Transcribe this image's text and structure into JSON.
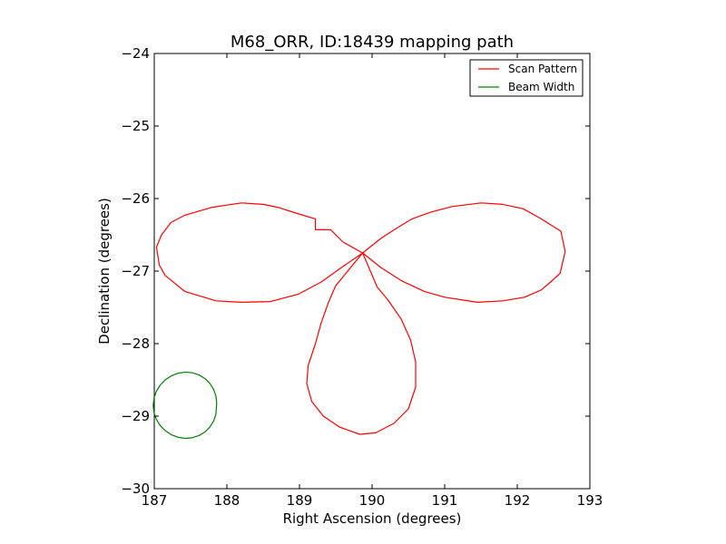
{
  "chart_data": {
    "type": "line",
    "title": "M68_ORR, ID:18439 mapping path",
    "xlabel": "Right Ascension (degrees)",
    "ylabel": "Declination (degrees)",
    "xlim": [
      187,
      193
    ],
    "ylim": [
      -30,
      -24
    ],
    "x_ticks": [
      187,
      188,
      189,
      190,
      191,
      192,
      193
    ],
    "x_tick_labels": [
      "187",
      "188",
      "189",
      "190",
      "191",
      "192",
      "193"
    ],
    "y_ticks": [
      -30,
      -29,
      -28,
      -27,
      -26,
      -25,
      -24
    ],
    "y_tick_labels": [
      "−30",
      "−29",
      "−28",
      "−27",
      "−26",
      "−25",
      "−24"
    ],
    "grid": false,
    "legend_position": "top-right",
    "series": [
      {
        "name": "Scan Pattern",
        "color": "#ff0000",
        "points": [
          [
            192.66,
            -26.73
          ],
          [
            192.6,
            -26.45
          ],
          [
            192.33,
            -26.28
          ],
          [
            192.08,
            -26.14
          ],
          [
            191.8,
            -26.08
          ],
          [
            191.5,
            -26.06
          ],
          [
            191.1,
            -26.11
          ],
          [
            190.8,
            -26.19
          ],
          [
            190.55,
            -26.28
          ],
          [
            190.32,
            -26.42
          ],
          [
            190.12,
            -26.55
          ],
          [
            189.87,
            -26.75
          ],
          [
            189.5,
            -27.2
          ],
          [
            189.4,
            -27.43
          ],
          [
            189.3,
            -27.71
          ],
          [
            189.22,
            -28.0
          ],
          [
            189.12,
            -28.3
          ],
          [
            189.1,
            -28.55
          ],
          [
            189.17,
            -28.8
          ],
          [
            189.33,
            -29.0
          ],
          [
            189.55,
            -29.15
          ],
          [
            189.83,
            -29.25
          ],
          [
            190.05,
            -29.23
          ],
          [
            190.3,
            -29.1
          ],
          [
            190.5,
            -28.9
          ],
          [
            190.6,
            -28.6
          ],
          [
            190.6,
            -28.25
          ],
          [
            190.53,
            -27.95
          ],
          [
            190.4,
            -27.66
          ],
          [
            190.22,
            -27.4
          ],
          [
            190.07,
            -27.22
          ],
          [
            189.87,
            -26.75
          ],
          [
            189.6,
            -26.6
          ],
          [
            189.43,
            -26.43
          ],
          [
            189.22,
            -26.43
          ],
          [
            189.22,
            -26.28
          ],
          [
            188.95,
            -26.2
          ],
          [
            188.7,
            -26.12
          ],
          [
            188.5,
            -26.08
          ],
          [
            188.2,
            -26.06
          ],
          [
            187.8,
            -26.12
          ],
          [
            187.42,
            -26.23
          ],
          [
            187.23,
            -26.33
          ],
          [
            187.1,
            -26.5
          ],
          [
            187.03,
            -26.67
          ],
          [
            187.07,
            -26.92
          ],
          [
            187.15,
            -27.06
          ],
          [
            187.42,
            -27.28
          ],
          [
            187.85,
            -27.41
          ],
          [
            188.2,
            -27.43
          ],
          [
            188.6,
            -27.42
          ],
          [
            188.98,
            -27.32
          ],
          [
            189.3,
            -27.15
          ],
          [
            189.58,
            -26.95
          ],
          [
            189.87,
            -26.75
          ],
          [
            190.12,
            -26.95
          ],
          [
            190.4,
            -27.13
          ],
          [
            190.72,
            -27.28
          ],
          [
            191.0,
            -27.36
          ],
          [
            191.45,
            -27.43
          ],
          [
            191.8,
            -27.41
          ],
          [
            192.1,
            -27.36
          ],
          [
            192.33,
            -27.26
          ],
          [
            192.46,
            -27.15
          ],
          [
            192.59,
            -27.03
          ],
          [
            192.66,
            -26.73
          ]
        ]
      },
      {
        "name": "Beam Width",
        "color": "#008000",
        "points": [
          [
            187.86,
            -28.82
          ],
          [
            187.849,
            -28.7233
          ],
          [
            187.8174,
            -28.6316
          ],
          [
            187.7662,
            -28.549
          ],
          [
            187.6974,
            -28.4808
          ],
          [
            187.6146,
            -28.4304
          ],
          [
            187.5221,
            -28.4007
          ],
          [
            187.4245,
            -28.3931
          ],
          [
            187.3266,
            -28.4081
          ],
          [
            187.2334,
            -28.4446
          ],
          [
            187.1497,
            -28.5008
          ],
          [
            187.08,
            -28.5736
          ],
          [
            187.0276,
            -28.6594
          ],
          [
            186.9956,
            -28.754
          ],
          [
            186.985,
            -28.852
          ],
          [
            186.9956,
            -28.9488
          ],
          [
            187.0276,
            -29.0424
          ],
          [
            187.08,
            -29.1271
          ],
          [
            187.1497,
            -29.1991
          ],
          [
            187.2334,
            -29.2547
          ],
          [
            187.3266,
            -29.2909
          ],
          [
            187.4245,
            -29.306
          ],
          [
            187.5221,
            -29.2983
          ],
          [
            187.6146,
            -29.2685
          ],
          [
            187.6974,
            -29.2182
          ],
          [
            187.7662,
            -29.1499
          ],
          [
            187.8174,
            -29.0674
          ],
          [
            187.849,
            -28.9747
          ],
          [
            187.86,
            -28.82
          ]
        ]
      }
    ]
  }
}
